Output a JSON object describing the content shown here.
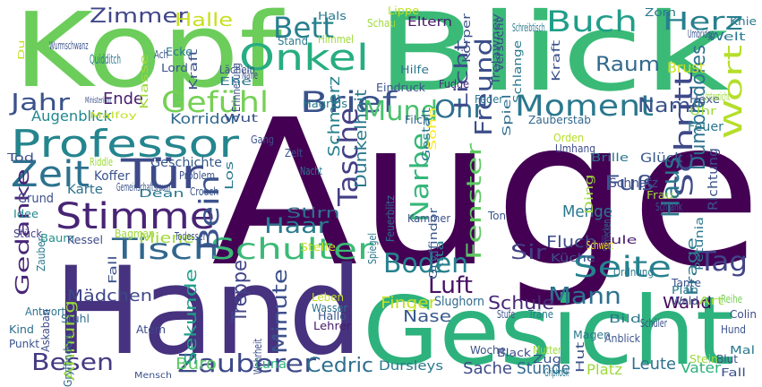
{
  "words": [
    {
      "text": "Auge",
      "color": "#440154"
    },
    {
      "text": "Blick",
      "color": "#3aba76"
    },
    {
      "text": "Kopf",
      "color": "#6ccd5a"
    },
    {
      "text": "Hand",
      "color": "#46327e"
    },
    {
      "text": "Gesicht",
      "color": "#2db27d"
    },
    {
      "text": "Professor",
      "color": "#25858e"
    },
    {
      "text": "Stimme",
      "color": "#482475"
    },
    {
      "text": "Tür",
      "color": "#3e4a89"
    },
    {
      "text": "Tisch",
      "color": "#31678e"
    },
    {
      "text": "Schulter",
      "color": "#3aba76"
    },
    {
      "text": "Moment",
      "color": "#2a788e"
    },
    {
      "text": "Seite",
      "color": "#26828e"
    },
    {
      "text": "Onkel",
      "color": "#27ad81"
    },
    {
      "text": "Brief",
      "color": "#3a528b"
    },
    {
      "text": "Gefühl",
      "color": "#75d054"
    },
    {
      "text": "Buch",
      "color": "#1f9e89"
    },
    {
      "text": "Herz",
      "color": "#277f8e"
    },
    {
      "text": "Wort",
      "color": "#b5de2b"
    },
    {
      "text": "Raum",
      "color": "#31688e"
    },
    {
      "text": "Bett",
      "color": "#27808e"
    },
    {
      "text": "Zimmer",
      "color": "#404688"
    },
    {
      "text": "Halle",
      "color": "#c8e020"
    },
    {
      "text": "Jahr",
      "color": "#3b528b"
    },
    {
      "text": "Zeit",
      "color": "#2c728e"
    },
    {
      "text": "Mund",
      "color": "#4ac16d"
    },
    {
      "text": "Ohr",
      "color": "#2d708e"
    },
    {
      "text": "Licht",
      "color": "#3e4c8a"
    },
    {
      "text": "Freund",
      "color": "#3c4f8a"
    },
    {
      "text": "Name",
      "color": "#3b528b"
    },
    {
      "text": "Schritt",
      "color": "#3e4989"
    },
    {
      "text": "Tag",
      "color": "#414487"
    },
    {
      "text": "Haus",
      "color": "#2a778e"
    },
    {
      "text": "Fenster",
      "color": "#5ec962"
    },
    {
      "text": "Narbe",
      "color": "#35b779"
    },
    {
      "text": "Tasche",
      "color": "#433e85"
    },
    {
      "text": "Fuß",
      "color": "#3b528b"
    },
    {
      "text": "Boden",
      "color": "#26828e"
    },
    {
      "text": "Luft",
      "color": "#471063"
    },
    {
      "text": "Gedanke",
      "color": "#482677"
    },
    {
      "text": "Bein",
      "color": "#3a548c"
    },
    {
      "text": "Haar",
      "color": "#287c8e"
    },
    {
      "text": "Stirn",
      "color": "#2e6f8e"
    },
    {
      "text": "Mann",
      "color": "#2c718e"
    },
    {
      "text": "Wand",
      "color": "#460b5e"
    },
    {
      "text": "Sir",
      "color": "#424186"
    },
    {
      "text": "Schule",
      "color": "#482878"
    },
    {
      "text": "Zauberer",
      "color": "#3e4989"
    },
    {
      "text": "Besen",
      "color": "#443a83"
    },
    {
      "text": "Cedric",
      "color": "#2e6e8e"
    },
    {
      "text": "Büro",
      "color": "#5ac864"
    },
    {
      "text": "Sekunde",
      "color": "#1f9e89"
    },
    {
      "text": "Minute",
      "color": "#3c508b"
    },
    {
      "text": "Treppe",
      "color": "#414487"
    },
    {
      "text": "Mädchen",
      "color": "#3f4788"
    },
    {
      "text": "Ahnung",
      "color": "#9bd93c"
    },
    {
      "text": "Miene",
      "color": "#a2da37"
    },
    {
      "text": "Ende",
      "color": "#481a6c"
    },
    {
      "text": "Augenblick",
      "color": "#23888e"
    },
    {
      "text": "Korridor",
      "color": "#306a8e"
    },
    {
      "text": "Dunkelheit",
      "color": "#2a788e"
    },
    {
      "text": "Schmerz",
      "color": "#26828e"
    },
    {
      "text": "Dumbledores",
      "color": "#2c728e"
    },
    {
      "text": "Menge",
      "color": "#2a788e"
    },
    {
      "text": "Fluch",
      "color": "#3d4d8a"
    },
    {
      "text": "Frage",
      "color": "#2a788e"
    },
    {
      "text": "Finger",
      "color": "#c2df23"
    },
    {
      "text": "Nase",
      "color": "#38598c"
    },
    {
      "text": "Leute",
      "color": "#2d718e"
    },
    {
      "text": "Vater",
      "color": "#2db27d"
    },
    {
      "text": "Stunde",
      "color": "#31688e"
    },
    {
      "text": "Sache",
      "color": "#3e4a89"
    },
    {
      "text": "Dursleys",
      "color": "#2a788e"
    },
    {
      "text": "Platz",
      "color": "#9dd93b"
    },
    {
      "text": "Luna",
      "color": "#2fb47c"
    },
    {
      "text": "Slughorn",
      "color": "#306a8e"
    },
    {
      "text": "Glück",
      "color": "#38588c"
    },
    {
      "text": "Richtung",
      "color": "#3b528b"
    },
    {
      "text": "Schnatz",
      "color": "#3e4c8a"
    },
    {
      "text": "Brust",
      "color": "#d0e11c"
    },
    {
      "text": "Feuer",
      "color": "#2a778e"
    },
    {
      "text": "Geschichte",
      "color": "#375a8c"
    },
    {
      "text": "Koffer",
      "color": "#3a538b"
    },
    {
      "text": "Karte",
      "color": "#2c738e"
    },
    {
      "text": "Grund",
      "color": "#3c4f8a"
    },
    {
      "text": "Idee",
      "color": "#23898e"
    },
    {
      "text": "Stück",
      "color": "#424086"
    },
    {
      "text": "Baum",
      "color": "#21918c"
    },
    {
      "text": "Kessel",
      "color": "#3e4a89"
    },
    {
      "text": "Zauber",
      "color": "#2a788e"
    },
    {
      "text": "Antwort",
      "color": "#2c728e"
    },
    {
      "text": "Askaban",
      "color": "#3e4c8a"
    },
    {
      "text": "Stuhl",
      "color": "#2e6e8e"
    },
    {
      "text": "Gryffindors",
      "color": "#31688e"
    },
    {
      "text": "Punkt",
      "color": "#3a548c"
    },
    {
      "text": "Kind",
      "color": "#2e6e8e"
    },
    {
      "text": "Atem",
      "color": "#3e4989"
    },
    {
      "text": "Mensch",
      "color": "#3b528b"
    },
    {
      "text": "Wahrheit",
      "color": "#3e4c8a"
    },
    {
      "text": "Hallo",
      "color": "#3a548c"
    },
    {
      "text": "Lehrer",
      "color": "#481a6c"
    },
    {
      "text": "Wasser",
      "color": "#2c718e"
    },
    {
      "text": "Leben",
      "color": "#c2df23"
    },
    {
      "text": "Stelle",
      "color": "#c8e020"
    },
    {
      "text": "Kammer",
      "color": "#3b518b"
    },
    {
      "text": "Ton",
      "color": "#3b528b"
    },
    {
      "text": "Spiegel",
      "color": "#2a788e"
    },
    {
      "text": "Gryffindor",
      "color": "#38598c"
    },
    {
      "text": "Feuerblitz",
      "color": "#2e6e8e"
    },
    {
      "text": "Rita",
      "color": "#26828e"
    },
    {
      "text": "Gestalt",
      "color": "#2a788e"
    },
    {
      "text": "Sohn",
      "color": "#fde725"
    },
    {
      "text": "Filch",
      "color": "#31688e"
    },
    {
      "text": "Eindruck",
      "color": "#3b528b"
    },
    {
      "text": "Fudge",
      "color": "#472f7d"
    },
    {
      "text": "Hilfe",
      "color": "#2a788e"
    },
    {
      "text": "Feder",
      "color": "#2a788e"
    },
    {
      "text": "Spiel",
      "color": "#2e6e8e"
    },
    {
      "text": "Zauberstab",
      "color": "#31688e"
    },
    {
      "text": "Orden",
      "color": "#b5de2b"
    },
    {
      "text": "Umhang",
      "color": "#3e4c8a"
    },
    {
      "text": "Brille",
      "color": "#2a788e"
    },
    {
      "text": "Ding",
      "color": "#9dd93b"
    },
    {
      "text": "Frau",
      "color": "#9dd93b"
    },
    {
      "text": "Schrank",
      "color": "#3b528b"
    },
    {
      "text": "Schrecken",
      "color": "#2a788e"
    },
    {
      "text": "Petunia",
      "color": "#2a788e"
    },
    {
      "text": "Eule",
      "color": "#481a6c"
    },
    {
      "text": "Schwert",
      "color": "#fde725"
    },
    {
      "text": "Küche",
      "color": "#3b528b"
    },
    {
      "text": "Ordnung",
      "color": "#2a788e"
    },
    {
      "text": "Tante",
      "color": "#3b528b"
    },
    {
      "text": "Plan",
      "color": "#2a788e"
    },
    {
      "text": "Wald",
      "color": "#3b528b"
    },
    {
      "text": "Art",
      "color": "#9dd93b"
    },
    {
      "text": "Reihe",
      "color": "#75d054"
    },
    {
      "text": "Colin",
      "color": "#3e4c8a"
    },
    {
      "text": "Hund",
      "color": "#3b528b"
    },
    {
      "text": "Mal",
      "color": "#2a788e"
    },
    {
      "text": "Blut",
      "color": "#3b528b"
    },
    {
      "text": "Fall",
      "color": "#3b528b"
    },
    {
      "text": "Stein",
      "color": "#9dd93b"
    },
    {
      "text": "Anblick",
      "color": "#3b528b"
    },
    {
      "text": "Magen",
      "color": "#2a788e"
    },
    {
      "text": "Black",
      "color": "#3e4c8a"
    },
    {
      "text": "Träne",
      "color": "#2a788e"
    },
    {
      "text": "Mutter",
      "color": "#9dd93b"
    },
    {
      "text": "Woche",
      "color": "#3b528b"
    },
    {
      "text": "Zug",
      "color": "#3b528b"
    },
    {
      "text": "Griphook",
      "color": "#2a788e"
    },
    {
      "text": "Hut",
      "color": "#3b528b"
    },
    {
      "text": "Stufe",
      "color": "#3b528b"
    },
    {
      "text": "Hals",
      "color": "#2a788e"
    },
    {
      "text": "Schau",
      "color": "#9dd93b"
    },
    {
      "text": "Eltern",
      "color": "#481a6c"
    },
    {
      "text": "Lippe",
      "color": "#c2df23"
    },
    {
      "text": "Zorn",
      "color": "#2a788e"
    },
    {
      "text": "Knie",
      "color": "#2a788e"
    },
    {
      "text": "Umbridge",
      "color": "#3b528b"
    },
    {
      "text": "Welt",
      "color": "#2a788e"
    },
    {
      "text": "Schreibtisch",
      "color": "#2a788e"
    },
    {
      "text": "Trelawney",
      "color": "#3b528b"
    },
    {
      "text": "Versucht",
      "color": "#3e4c8a"
    },
    {
      "text": "Körper",
      "color": "#3b528b"
    },
    {
      "text": "Himmel",
      "color": "#9dd93b"
    },
    {
      "text": "Stand",
      "color": "#2a788e"
    },
    {
      "text": "Erinnerung",
      "color": "#3b528b"
    },
    {
      "text": "Kraft",
      "color": "#3b528b"
    },
    {
      "text": "Lächeln",
      "color": "#3b528b"
    },
    {
      "text": "Ehe",
      "color": "#2a788e"
    },
    {
      "text": "Nähe",
      "color": "#3b528b"
    },
    {
      "text": "Ecke",
      "color": "#2a788e"
    },
    {
      "text": "Ach",
      "color": "#3b528b"
    },
    {
      "text": "Lord",
      "color": "#3b528b"
    },
    {
      "text": "Quidditch",
      "color": "#2a788e"
    },
    {
      "text": "Klasse",
      "color": "#9dd93b"
    },
    {
      "text": "Wurmschwanz",
      "color": "#3b528b"
    },
    {
      "text": "Du",
      "color": "#c2df23"
    },
    {
      "text": "Ministerium",
      "color": "#3b528b"
    },
    {
      "text": "Malfoy",
      "color": "#c2df23"
    },
    {
      "text": "Hagrids",
      "color": "#2a788e"
    },
    {
      "text": "Wut",
      "color": "#3b528b"
    },
    {
      "text": "Gang",
      "color": "#3b528b"
    },
    {
      "text": "Tod",
      "color": "#3b528b"
    },
    {
      "text": "Riddle",
      "color": "#9dd93b"
    },
    {
      "text": "Gemeinschaftsraum",
      "color": "#3b528b"
    },
    {
      "text": "Dean",
      "color": "#2a788e"
    },
    {
      "text": "Crouch",
      "color": "#3b528b"
    },
    {
      "text": "Problem",
      "color": "#3b528b"
    },
    {
      "text": "Los",
      "color": "#2a788e"
    },
    {
      "text": "Zelt",
      "color": "#3b528b"
    },
    {
      "text": "Nacht",
      "color": "#2a788e"
    },
    {
      "text": "Todesser",
      "color": "#3b528b"
    },
    {
      "text": "Bagman",
      "color": "#9dd93b"
    },
    {
      "text": "Fall",
      "color": "#3b528b"
    },
    {
      "text": "Schüler",
      "color": "#3b528b"
    },
    {
      "text": "Bild",
      "color": "#2a788e"
    },
    {
      "text": "Hexe",
      "color": "#3b528b"
    },
    {
      "text": "Uhr",
      "color": "#9dd93b"
    },
    {
      "text": "Unterricht",
      "color": "#9dd93b"
    },
    {
      "text": "Schlange",
      "color": "#2a788e"
    },
    {
      "text": "Kraft",
      "color": "#3b528b"
    }
  ]
}
